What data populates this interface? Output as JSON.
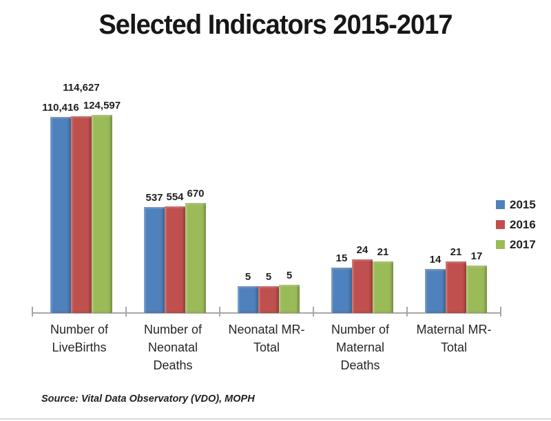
{
  "chart_data": {
    "type": "bar",
    "scale": "log10",
    "title": "Selected Indicators 2015-2017",
    "categories": [
      "Number of LiveBirths",
      "Number of Neonatal Deaths",
      "Neonatal MR-Total",
      "Number of Maternal Deaths",
      "Maternal MR-Total"
    ],
    "category_lines": [
      [
        "Number of",
        "LiveBirths"
      ],
      [
        "Number of",
        "Neonatal",
        "Deaths"
      ],
      [
        "Neonatal MR-",
        "Total"
      ],
      [
        "Number of",
        "Maternal",
        "Deaths"
      ],
      [
        "Maternal MR-",
        "Total"
      ]
    ],
    "series": [
      {
        "name": "2015",
        "color": "#4f81bd",
        "labels": [
          "110,416",
          "537",
          "5",
          "15",
          "14"
        ],
        "values": [
          110416,
          537,
          5,
          15,
          14
        ],
        "plot_values": [
          110416,
          537,
          4.86,
          15,
          13.6
        ]
      },
      {
        "name": "2016",
        "color": "#c0504d",
        "labels": [
          "114,627",
          "554",
          "5",
          "24",
          "21"
        ],
        "values": [
          114627,
          554,
          5,
          24,
          21
        ],
        "plot_values": [
          114627,
          554,
          4.83,
          24,
          20.9
        ]
      },
      {
        "name": "2017",
        "color": "#9bbb59",
        "labels": [
          "124,597",
          "670",
          "5",
          "21",
          "17"
        ],
        "values": [
          124597,
          670,
          5,
          21,
          17
        ],
        "plot_values": [
          124597,
          670,
          5.38,
          21,
          16.9
        ]
      }
    ],
    "legend_position": "right",
    "grid": false,
    "source_note": "Source: Vital Data Observatory (VDO), MOPH"
  }
}
